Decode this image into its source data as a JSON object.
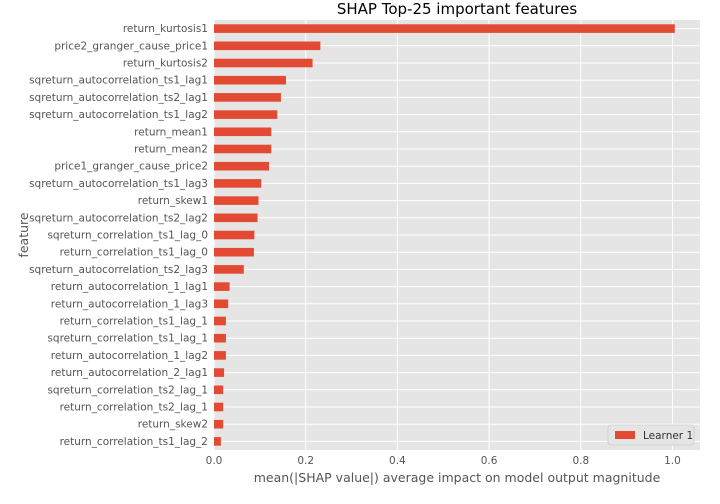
{
  "chart_data": {
    "type": "bar",
    "orientation": "horizontal",
    "title": "SHAP Top-25 important features",
    "xlabel": "mean(|SHAP value|) average impact on model output magnitude",
    "ylabel": "feature",
    "xlim": [
      0,
      1.06
    ],
    "xticks": [
      "0.0",
      "0.2",
      "0.4",
      "0.6",
      "0.8",
      "1.0"
    ],
    "grid": true,
    "legend_position": "bottom-right",
    "categories": [
      "return_kurtosis1",
      "price2_granger_cause_price1",
      "return_kurtosis2",
      "sqreturn_autocorrelation_ts1_lag1",
      "sqreturn_autocorrelation_ts2_lag1",
      "sqreturn_autocorrelation_ts1_lag2",
      "return_mean1",
      "return_mean2",
      "price1_granger_cause_price2",
      "sqreturn_autocorrelation_ts1_lag3",
      "return_skew1",
      "sqreturn_autocorrelation_ts2_lag2",
      "sqreturn_correlation_ts1_lag_0",
      "return_correlation_ts1_lag_0",
      "sqreturn_autocorrelation_ts2_lag3",
      "return_autocorrelation_1_lag1",
      "return_autocorrelation_1_lag3",
      "return_correlation_ts1_lag_1",
      "sqreturn_correlation_ts1_lag_1",
      "return_autocorrelation_1_lag2",
      "return_autocorrelation_2_lag1",
      "sqreturn_correlation_ts2_lag_1",
      "return_correlation_ts2_lag_1",
      "return_skew2",
      "return_correlation_ts1_lag_2"
    ],
    "series": [
      {
        "name": "Learner 1",
        "color": "#e24a33",
        "values": [
          1.005,
          0.232,
          0.215,
          0.157,
          0.146,
          0.138,
          0.125,
          0.125,
          0.12,
          0.103,
          0.097,
          0.095,
          0.088,
          0.087,
          0.065,
          0.034,
          0.031,
          0.026,
          0.026,
          0.026,
          0.022,
          0.02,
          0.02,
          0.02,
          0.015
        ]
      }
    ]
  },
  "colors": {
    "plot_background": "#e5e5e5",
    "grid": "#ffffff",
    "bar": "#e24a33"
  }
}
